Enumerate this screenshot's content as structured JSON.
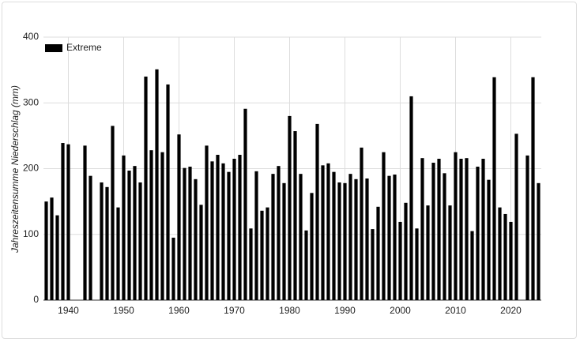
{
  "chart_data": {
    "type": "bar",
    "y_label": "Jahreszeitensumme Niederschlag (mm)",
    "x": [
      1936,
      1937,
      1938,
      1939,
      1940,
      1941,
      1942,
      1943,
      1944,
      1945,
      1946,
      1947,
      1948,
      1949,
      1950,
      1951,
      1952,
      1953,
      1954,
      1955,
      1956,
      1957,
      1958,
      1959,
      1960,
      1961,
      1962,
      1963,
      1964,
      1965,
      1966,
      1967,
      1968,
      1969,
      1970,
      1971,
      1972,
      1973,
      1974,
      1975,
      1976,
      1977,
      1978,
      1979,
      1980,
      1981,
      1982,
      1983,
      1984,
      1985,
      1986,
      1987,
      1988,
      1989,
      1990,
      1991,
      1992,
      1993,
      1994,
      1995,
      1996,
      1997,
      1998,
      1999,
      2000,
      2001,
      2002,
      2003,
      2004,
      2005,
      2006,
      2007,
      2008,
      2009,
      2010,
      2011,
      2012,
      2013,
      2014,
      2015,
      2016,
      2017,
      2018,
      2019,
      2020,
      2021,
      2022,
      2023,
      2024,
      2025
    ],
    "series": [
      {
        "name": "Extreme",
        "color": "#000000",
        "values": [
          150,
          156,
          129,
          239,
          237,
          null,
          null,
          235,
          189,
          null,
          179,
          172,
          265,
          141,
          220,
          197,
          204,
          179,
          340,
          228,
          351,
          225,
          328,
          95,
          252,
          201,
          203,
          184,
          145,
          235,
          211,
          221,
          208,
          195,
          215,
          221,
          291,
          109,
          196,
          136,
          141,
          192,
          204,
          178,
          280,
          257,
          192,
          106,
          163,
          268,
          205,
          208,
          195,
          179,
          178,
          192,
          184,
          232,
          185,
          108,
          142,
          225,
          189,
          191,
          119,
          148,
          310,
          109,
          216,
          144,
          209,
          215,
          193,
          144,
          225,
          215,
          216,
          105,
          203,
          215,
          183,
          339,
          141,
          131,
          119,
          253,
          null,
          220,
          339,
          178
        ]
      }
    ],
    "xlim": [
      1935.5,
      2025.5
    ],
    "xticks": [
      1940,
      1950,
      1960,
      1970,
      1980,
      1990,
      2000,
      2010,
      2020
    ],
    "ylim": [
      0,
      400
    ],
    "yticks": [
      0,
      100,
      200,
      300,
      400
    ],
    "grid": true,
    "legend": "top-left"
  }
}
